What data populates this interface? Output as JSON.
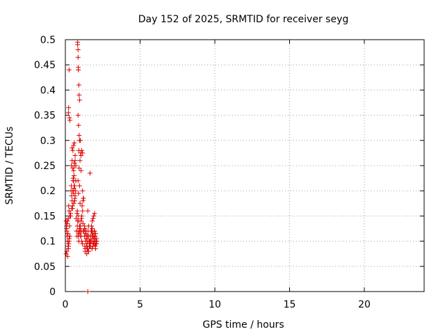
{
  "chart_data": {
    "type": "scatter",
    "title": "Day 152 of 2025, SRMTID for receiver seyg",
    "xlabel": "GPS time / hours",
    "ylabel": "SRMTID / TECUs",
    "xlim": [
      0,
      24
    ],
    "ylim": [
      0,
      0.5
    ],
    "xticks": [
      0,
      5,
      10,
      15,
      20
    ],
    "xtick_labels": [
      "0",
      "5",
      "10",
      "15",
      "20"
    ],
    "yticks": [
      0,
      0.05,
      0.1,
      0.15,
      0.2,
      0.25,
      0.3,
      0.35,
      0.4,
      0.45,
      0.5
    ],
    "ytick_labels": [
      "0",
      "0.05",
      "0.1",
      "0.15",
      "0.2",
      "0.25",
      "0.3",
      "0.35",
      "0.4",
      "0.45",
      "0.5"
    ],
    "grid": true,
    "marker": "plus",
    "color": "#dd0000",
    "series": [
      {
        "name": "seyg",
        "x": [
          0.05,
          0.08,
          0.1,
          0.12,
          0.15,
          0.18,
          0.2,
          0.22,
          0.25,
          0.28,
          0.3,
          0.05,
          0.1,
          0.15,
          0.2,
          0.25,
          0.3,
          0.12,
          0.15,
          0.2,
          0.25,
          0.22,
          0.08,
          0.18,
          0.35,
          0.38,
          0.4,
          0.42,
          0.45,
          0.48,
          0.5,
          0.52,
          0.55,
          0.58,
          0.6,
          0.62,
          0.65,
          0.68,
          0.7,
          0.4,
          0.45,
          0.5,
          0.55,
          0.6,
          0.65,
          0.7,
          0.5,
          0.55,
          0.6,
          0.45,
          0.52,
          0.58,
          0.62,
          0.48,
          0.56,
          0.64,
          0.35,
          0.42,
          0.75,
          0.78,
          0.8,
          0.82,
          0.85,
          0.88,
          0.9,
          0.92,
          0.95,
          0.98,
          1.0,
          1.02,
          1.05,
          1.08,
          1.1,
          1.12,
          1.15,
          1.18,
          1.2,
          1.22,
          0.8,
          0.85,
          0.9,
          0.95,
          1.0,
          1.05,
          1.1,
          1.15,
          1.2,
          0.85,
          0.95,
          1.05,
          1.15,
          0.78,
          0.88,
          0.98,
          1.08,
          1.18,
          1.25,
          1.28,
          1.3,
          1.32,
          1.35,
          1.38,
          1.4,
          1.42,
          1.45,
          1.48,
          1.5,
          1.52,
          1.55,
          1.58,
          1.6,
          1.62,
          1.65,
          1.68,
          1.7,
          1.72,
          1.75,
          1.78,
          1.8,
          1.82,
          1.85,
          1.88,
          1.9,
          1.92,
          1.95,
          1.98,
          2.0,
          2.02,
          2.05,
          2.08,
          2.1,
          1.3,
          1.35,
          1.4,
          1.45,
          1.5,
          1.55,
          1.6,
          1.65,
          1.7,
          1.75,
          1.8,
          1.85,
          1.9,
          1.95,
          2.0,
          2.05,
          1.28,
          1.38,
          1.48,
          1.58,
          1.68,
          1.78,
          1.88,
          1.98,
          2.08,
          1.33,
          1.43,
          1.53,
          1.63,
          1.73,
          1.83,
          1.93,
          2.03,
          0.82,
          0.82,
          0.85,
          0.85,
          0.86,
          0.87,
          0.9,
          0.92,
          0.95,
          1.0,
          1.02,
          0.25,
          0.22,
          0.2,
          0.28,
          0.3,
          0.85,
          0.88,
          0.92,
          0.95,
          0.9,
          1.65,
          0.65,
          0.55,
          0.6,
          0.72,
          0.92,
          0.98,
          1.05,
          1.1,
          1.15,
          1.5,
          1.8,
          1.85,
          1.9,
          1.95,
          1.5
        ],
        "y": [
          0.14,
          0.13,
          0.12,
          0.11,
          0.1,
          0.09,
          0.085,
          0.095,
          0.105,
          0.13,
          0.15,
          0.075,
          0.08,
          0.07,
          0.09,
          0.1,
          0.11,
          0.135,
          0.14,
          0.145,
          0.16,
          0.17,
          0.125,
          0.115,
          0.15,
          0.2,
          0.21,
          0.19,
          0.18,
          0.17,
          0.2,
          0.22,
          0.195,
          0.205,
          0.21,
          0.18,
          0.19,
          0.2,
          0.22,
          0.25,
          0.26,
          0.245,
          0.24,
          0.255,
          0.26,
          0.25,
          0.28,
          0.29,
          0.295,
          0.285,
          0.225,
          0.23,
          0.21,
          0.165,
          0.175,
          0.185,
          0.155,
          0.165,
          0.12,
          0.11,
          0.13,
          0.14,
          0.12,
          0.11,
          0.1,
          0.115,
          0.125,
          0.12,
          0.13,
          0.11,
          0.14,
          0.12,
          0.15,
          0.17,
          0.16,
          0.18,
          0.185,
          0.185,
          0.16,
          0.15,
          0.14,
          0.13,
          0.12,
          0.11,
          0.1,
          0.095,
          0.12,
          0.22,
          0.21,
          0.24,
          0.2,
          0.155,
          0.195,
          0.175,
          0.145,
          0.135,
          0.12,
          0.11,
          0.09,
          0.08,
          0.1,
          0.12,
          0.11,
          0.09,
          0.085,
          0.1,
          0.11,
          0.12,
          0.13,
          0.11,
          0.1,
          0.09,
          0.095,
          0.1,
          0.11,
          0.12,
          0.13,
          0.12,
          0.11,
          0.1,
          0.09,
          0.095,
          0.105,
          0.11,
          0.12,
          0.1,
          0.09,
          0.085,
          0.095,
          0.105,
          0.1,
          0.125,
          0.115,
          0.105,
          0.095,
          0.085,
          0.08,
          0.09,
          0.1,
          0.11,
          0.12,
          0.125,
          0.115,
          0.105,
          0.095,
          0.11,
          0.1,
          0.13,
          0.12,
          0.11,
          0.1,
          0.09,
          0.085,
          0.095,
          0.105,
          0.095,
          0.085,
          0.075,
          0.08,
          0.09,
          0.1,
          0.11,
          0.12,
          0.115,
          0.495,
          0.49,
          0.48,
          0.465,
          0.445,
          0.44,
          0.41,
          0.39,
          0.38,
          0.3,
          0.275,
          0.44,
          0.365,
          0.355,
          0.345,
          0.34,
          0.35,
          0.33,
          0.31,
          0.3,
          0.28,
          0.235,
          0.27,
          0.22,
          0.25,
          0.145,
          0.245,
          0.26,
          0.27,
          0.28,
          0.275,
          0.16,
          0.14,
          0.145,
          0.15,
          0.155,
          0.0
        ]
      }
    ]
  }
}
